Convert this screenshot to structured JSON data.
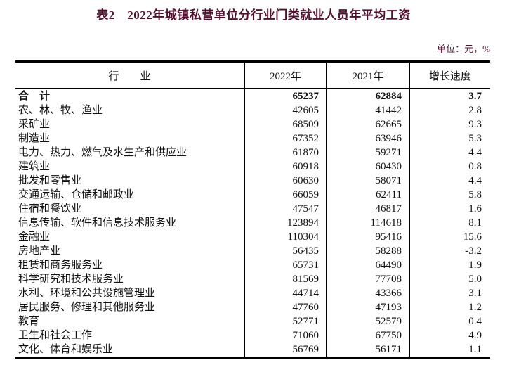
{
  "page": {
    "title": "表2　2022年城镇私营单位分行业门类就业人员年平均工资",
    "unit_label": "单位：元，%"
  },
  "colors": {
    "title_text": "#53102e",
    "unit_text": "#53102e",
    "table_text": "#111111",
    "border": "#000000",
    "background": "#ffffff"
  },
  "table": {
    "columns": [
      "行　　业",
      "2022年",
      "2021年",
      "增长速度"
    ],
    "rows": [
      {
        "industry": "合　计",
        "y2022": "65237",
        "y2021": "62884",
        "growth": "3.7",
        "bold": true
      },
      {
        "industry": "农、林、牧、渔业",
        "y2022": "42605",
        "y2021": "41442",
        "growth": "2.8",
        "bold": false
      },
      {
        "industry": "采矿业",
        "y2022": "68509",
        "y2021": "62665",
        "growth": "9.3",
        "bold": false
      },
      {
        "industry": "制造业",
        "y2022": "67352",
        "y2021": "63946",
        "growth": "5.3",
        "bold": false
      },
      {
        "industry": "电力、热力、燃气及水生产和供应业",
        "y2022": "61870",
        "y2021": "59271",
        "growth": "4.4",
        "bold": false
      },
      {
        "industry": "建筑业",
        "y2022": "60918",
        "y2021": "60430",
        "growth": "0.8",
        "bold": false
      },
      {
        "industry": "批发和零售业",
        "y2022": "60630",
        "y2021": "58071",
        "growth": "4.4",
        "bold": false
      },
      {
        "industry": "交通运输、仓储和邮政业",
        "y2022": "66059",
        "y2021": "62411",
        "growth": "5.8",
        "bold": false
      },
      {
        "industry": "住宿和餐饮业",
        "y2022": "47547",
        "y2021": "46817",
        "growth": "1.6",
        "bold": false
      },
      {
        "industry": "信息传输、软件和信息技术服务业",
        "y2022": "123894",
        "y2021": "114618",
        "growth": "8.1",
        "bold": false
      },
      {
        "industry": "金融业",
        "y2022": "110304",
        "y2021": "95416",
        "growth": "15.6",
        "bold": false
      },
      {
        "industry": "房地产业",
        "y2022": "56435",
        "y2021": "58288",
        "growth": "-3.2",
        "bold": false
      },
      {
        "industry": "租赁和商务服务业",
        "y2022": "65731",
        "y2021": "64490",
        "growth": "1.9",
        "bold": false
      },
      {
        "industry": "科学研究和技术服务业",
        "y2022": "81569",
        "y2021": "77708",
        "growth": "5.0",
        "bold": false
      },
      {
        "industry": "水利、环境和公共设施管理业",
        "y2022": "44714",
        "y2021": "43366",
        "growth": "3.1",
        "bold": false
      },
      {
        "industry": "居民服务、修理和其他服务业",
        "y2022": "47760",
        "y2021": "47193",
        "growth": "1.2",
        "bold": false
      },
      {
        "industry": "教育",
        "y2022": "52771",
        "y2021": "52579",
        "growth": "0.4",
        "bold": false
      },
      {
        "industry": "卫生和社会工作",
        "y2022": "71060",
        "y2021": "67750",
        "growth": "4.9",
        "bold": false
      },
      {
        "industry": "文化、体育和娱乐业",
        "y2022": "56769",
        "y2021": "56171",
        "growth": "1.1",
        "bold": false
      }
    ]
  }
}
